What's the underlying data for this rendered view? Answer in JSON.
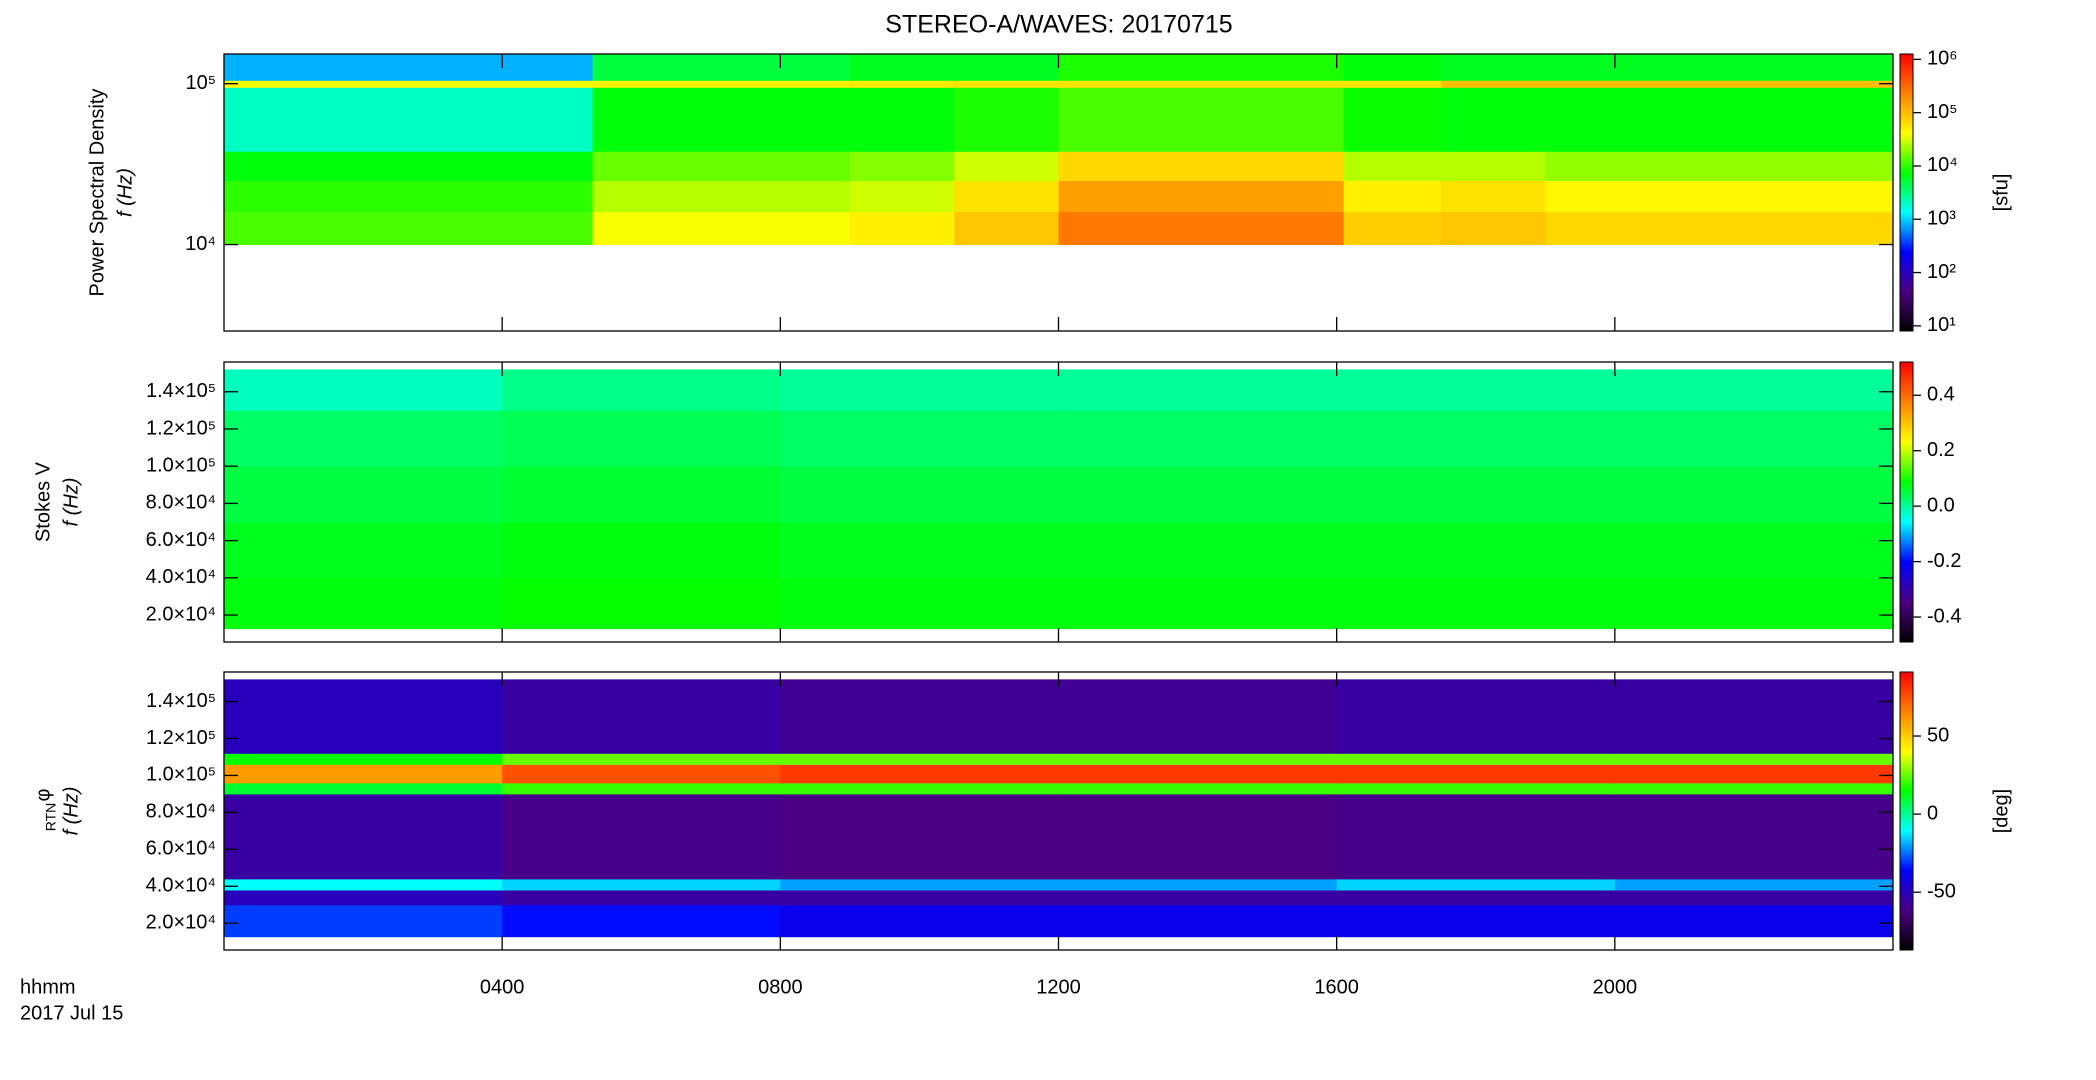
{
  "chart_data": {
    "title": "STEREO-A/WAVES: 20170715",
    "xlim": [
      0,
      24
    ],
    "xticks": [
      {
        "value": 4,
        "label": "0400"
      },
      {
        "value": 8,
        "label": "0800"
      },
      {
        "value": 12,
        "label": "1200"
      },
      {
        "value": 16,
        "label": "1600"
      },
      {
        "value": 20,
        "label": "2000"
      }
    ],
    "x_labels": [
      "hhmm",
      "2017 Jul 15"
    ],
    "colormap": [
      "#000000",
      "#4b0082",
      "#0000ff",
      "#00ffff",
      "#00ff00",
      "#ffff00",
      "#ff8000",
      "#ff0000"
    ],
    "panels": [
      {
        "type": "heatmap",
        "ylabel": "Power Spectral Density",
        "ylabel2": "f (Hz)",
        "ylog": true,
        "ylim": [
          2900,
          153000
        ],
        "yticks": [
          {
            "value": 10000,
            "label": "10⁴"
          },
          {
            "value": 100000,
            "label": "10⁵"
          }
        ],
        "x_bins": [
          0,
          5.3,
          9,
          10.5,
          12,
          16.1,
          17.5,
          19,
          24
        ],
        "y_bins": [
          10000,
          16000,
          25000,
          38000,
          95000,
          105000,
          153000
        ],
        "z": [
          [
            12000,
            40000,
            50000,
            90000,
            250000,
            80000,
            90000,
            70000
          ],
          [
            10000,
            25000,
            30000,
            60000,
            150000,
            50000,
            60000,
            45000
          ],
          [
            7000,
            15000,
            18000,
            30000,
            70000,
            25000,
            25000,
            20000
          ],
          [
            2000,
            7000,
            7000,
            9000,
            12000,
            8000,
            7000,
            7000
          ],
          [
            40000,
            50000,
            55000,
            60000,
            60000,
            60000,
            100000,
            100000
          ],
          [
            800,
            5000,
            6000,
            6000,
            9000,
            7000,
            6000,
            6000
          ]
        ],
        "zlog": true,
        "zlim": [
          8,
          1260000
        ],
        "zticks": [
          {
            "value": 10,
            "label": "10¹"
          },
          {
            "value": 100,
            "label": "10²"
          },
          {
            "value": 1000,
            "label": "10³"
          },
          {
            "value": 10000,
            "label": "10⁴"
          },
          {
            "value": 100000,
            "label": "10⁵"
          },
          {
            "value": 1000000,
            "label": "10⁶"
          }
        ],
        "zlabel": "[sfu]"
      },
      {
        "type": "heatmap",
        "ylabel": "Stokes V",
        "ylabel2": "f (Hz)",
        "ylog": false,
        "ylim": [
          5500,
          156000
        ],
        "yticks": [
          {
            "value": 20000,
            "label": "2.0×10⁴"
          },
          {
            "value": 40000,
            "label": "4.0×10⁴"
          },
          {
            "value": 60000,
            "label": "6.0×10⁴"
          },
          {
            "value": 80000,
            "label": "8.0×10⁴"
          },
          {
            "value": 100000,
            "label": "1.0×10⁵"
          },
          {
            "value": 120000,
            "label": "1.2×10⁵"
          },
          {
            "value": 140000,
            "label": "1.4×10⁵"
          }
        ],
        "x_bins": [
          0,
          4,
          8,
          12,
          16,
          20,
          24
        ],
        "y_bins": [
          12700,
          40000,
          70000,
          100000,
          130000,
          152000
        ],
        "z": [
          [
            0.08,
            0.09,
            0.08,
            0.08,
            0.08,
            0.08
          ],
          [
            0.07,
            0.08,
            0.07,
            0.07,
            0.07,
            0.07
          ],
          [
            0.05,
            0.06,
            0.05,
            0.05,
            0.05,
            0.05
          ],
          [
            0.03,
            0.04,
            0.03,
            0.03,
            0.03,
            0.03
          ],
          [
            -0.02,
            0.01,
            0.0,
            0.0,
            0.0,
            0.0
          ]
        ],
        "zlog": false,
        "zlim": [
          -0.49,
          0.52
        ],
        "zticks": [
          0.4,
          0.2,
          {
            "value": 0,
            "label": "0.0"
          },
          -0.2,
          -0.4
        ]
      },
      {
        "type": "heatmap",
        "ylabel": "φ",
        "ylabel_sub": "RTN",
        "ylabel2": "f (Hz)",
        "ylog": false,
        "ylim": [
          5500,
          156000
        ],
        "yticks": [
          {
            "value": 20000,
            "label": "2.0×10⁴"
          },
          {
            "value": 40000,
            "label": "4.0×10⁴"
          },
          {
            "value": 60000,
            "label": "6.0×10⁴"
          },
          {
            "value": 80000,
            "label": "8.0×10⁴"
          },
          {
            "value": 100000,
            "label": "1.0×10⁵"
          },
          {
            "value": 120000,
            "label": "1.2×10⁵"
          },
          {
            "value": 140000,
            "label": "1.4×10⁵"
          }
        ],
        "x_bins": [
          0,
          4,
          8,
          12,
          16,
          20,
          24
        ],
        "y_bins": [
          12700,
          30000,
          38000,
          44000,
          90000,
          96000,
          106000,
          112000,
          152000
        ],
        "z": [
          [
            -30,
            -35,
            -40,
            -40,
            -40,
            -40
          ],
          [
            -50,
            -55,
            -55,
            -55,
            -55,
            -55
          ],
          [
            -10,
            -15,
            -20,
            -20,
            -15,
            -20
          ],
          [
            -55,
            -60,
            -62,
            -62,
            -60,
            -60
          ],
          [
            10,
            20,
            20,
            20,
            20,
            20
          ],
          [
            60,
            75,
            80,
            80,
            80,
            80
          ],
          [
            15,
            25,
            25,
            25,
            25,
            25
          ],
          [
            -50,
            -55,
            -58,
            -58,
            -55,
            -55
          ]
        ],
        "zlog": false,
        "zlim": [
          -87,
          91
        ],
        "zticks": [
          50,
          0,
          -50
        ],
        "zlabel": "[deg]"
      }
    ]
  }
}
